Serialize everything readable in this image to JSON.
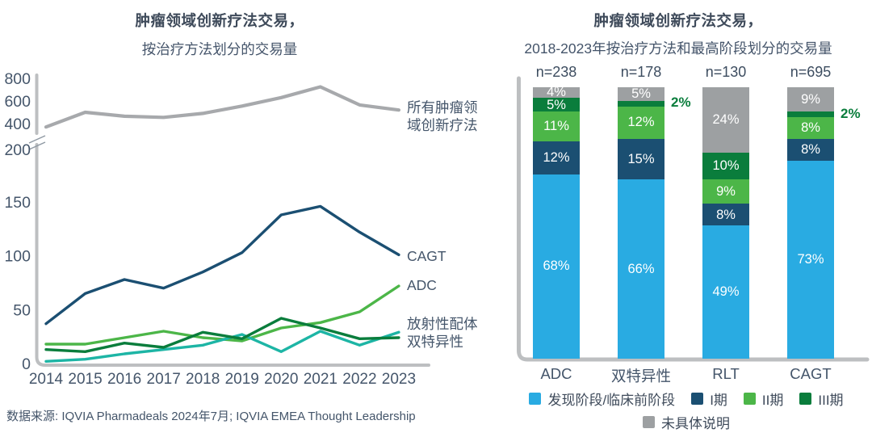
{
  "page": {
    "background": "#ffffff"
  },
  "colors": {
    "title_text": "#3e4a5a",
    "axis_text": "#45566b",
    "axis_line": "#bdbfc1",
    "break_mark": "#8f99a3",
    "bar_label_text": "#ffffff",
    "outside_label_green": "#0a7d3c"
  },
  "chart_data": [
    {
      "type": "line",
      "title": "肿瘤领域创新疗法交易，",
      "subtitle": "按治疗方法划分的交易量",
      "x": [
        2014,
        2015,
        2016,
        2017,
        2018,
        2019,
        2020,
        2021,
        2022,
        2023
      ],
      "axis_break": true,
      "upper_axis_ticks": [
        800,
        600,
        400,
        200
      ],
      "lower_axis_ticks": [
        150,
        100,
        50,
        0
      ],
      "ylim_lower": [
        0,
        200
      ],
      "ylim_upper": [
        200,
        800
      ],
      "grid": false,
      "legend_position": "right-of-line-end",
      "series": [
        {
          "name": "所有肿瘤领域创新疗法",
          "label_lines": [
            "所有肿瘤领",
            "域创新疗法"
          ],
          "color": "#a7a9ac",
          "axis": "upper",
          "values": [
            370,
            500,
            465,
            455,
            490,
            555,
            630,
            725,
            565,
            520
          ]
        },
        {
          "name": "CAGT",
          "label_lines": [
            "CAGT"
          ],
          "color": "#1b4f72",
          "axis": "lower",
          "values": [
            37,
            65,
            78,
            70,
            85,
            103,
            138,
            146,
            122,
            101
          ]
        },
        {
          "name": "ADC",
          "label_lines": [
            "ADC"
          ],
          "color": "#4cb648",
          "axis": "lower",
          "values": [
            18,
            18,
            24,
            30,
            24,
            21,
            33,
            38,
            48,
            72
          ]
        },
        {
          "name": "放射性配体",
          "label_lines": [
            "放射性配体"
          ],
          "color": "#1db5a5",
          "axis": "lower",
          "values": [
            2,
            4,
            9,
            13,
            17,
            27,
            11,
            30,
            17,
            29
          ]
        },
        {
          "name": "双特异性",
          "label_lines": [
            "双特异性"
          ],
          "color": "#0a7d3c",
          "axis": "lower",
          "values": [
            13,
            11,
            19,
            15,
            29,
            23,
            42,
            33,
            23,
            24
          ]
        }
      ],
      "source": "数据来源: IQVIA Pharmadeals 2024年7月; IQVIA EMEA Thought Leadership"
    },
    {
      "type": "stacked-bar-100",
      "title": "肿瘤领域创新疗法交易，",
      "subtitle": "2018-2023年按治疗方法和最高阶段划分的交易量",
      "categories": [
        "ADC",
        "双特异性",
        "RLT",
        "CAGT"
      ],
      "n_labels": [
        "n=238",
        "n=178",
        "n=130",
        "n=695"
      ],
      "unit": "%",
      "legend_position": "bottom",
      "series": [
        {
          "name": "发现阶段/临床前阶段",
          "color": "#29abe2",
          "values": [
            68,
            66,
            49,
            73
          ]
        },
        {
          "name": "I期",
          "color": "#1b4f72",
          "values": [
            12,
            15,
            8,
            8
          ]
        },
        {
          "name": "II期",
          "color": "#4cb648",
          "values": [
            11,
            12,
            9,
            8
          ]
        },
        {
          "name": "III期",
          "color": "#0a7d3c",
          "values": [
            5,
            2,
            10,
            2
          ]
        },
        {
          "name": "未具体说明",
          "color": "#9da0a2",
          "values": [
            4,
            5,
            24,
            9
          ]
        }
      ]
    }
  ]
}
